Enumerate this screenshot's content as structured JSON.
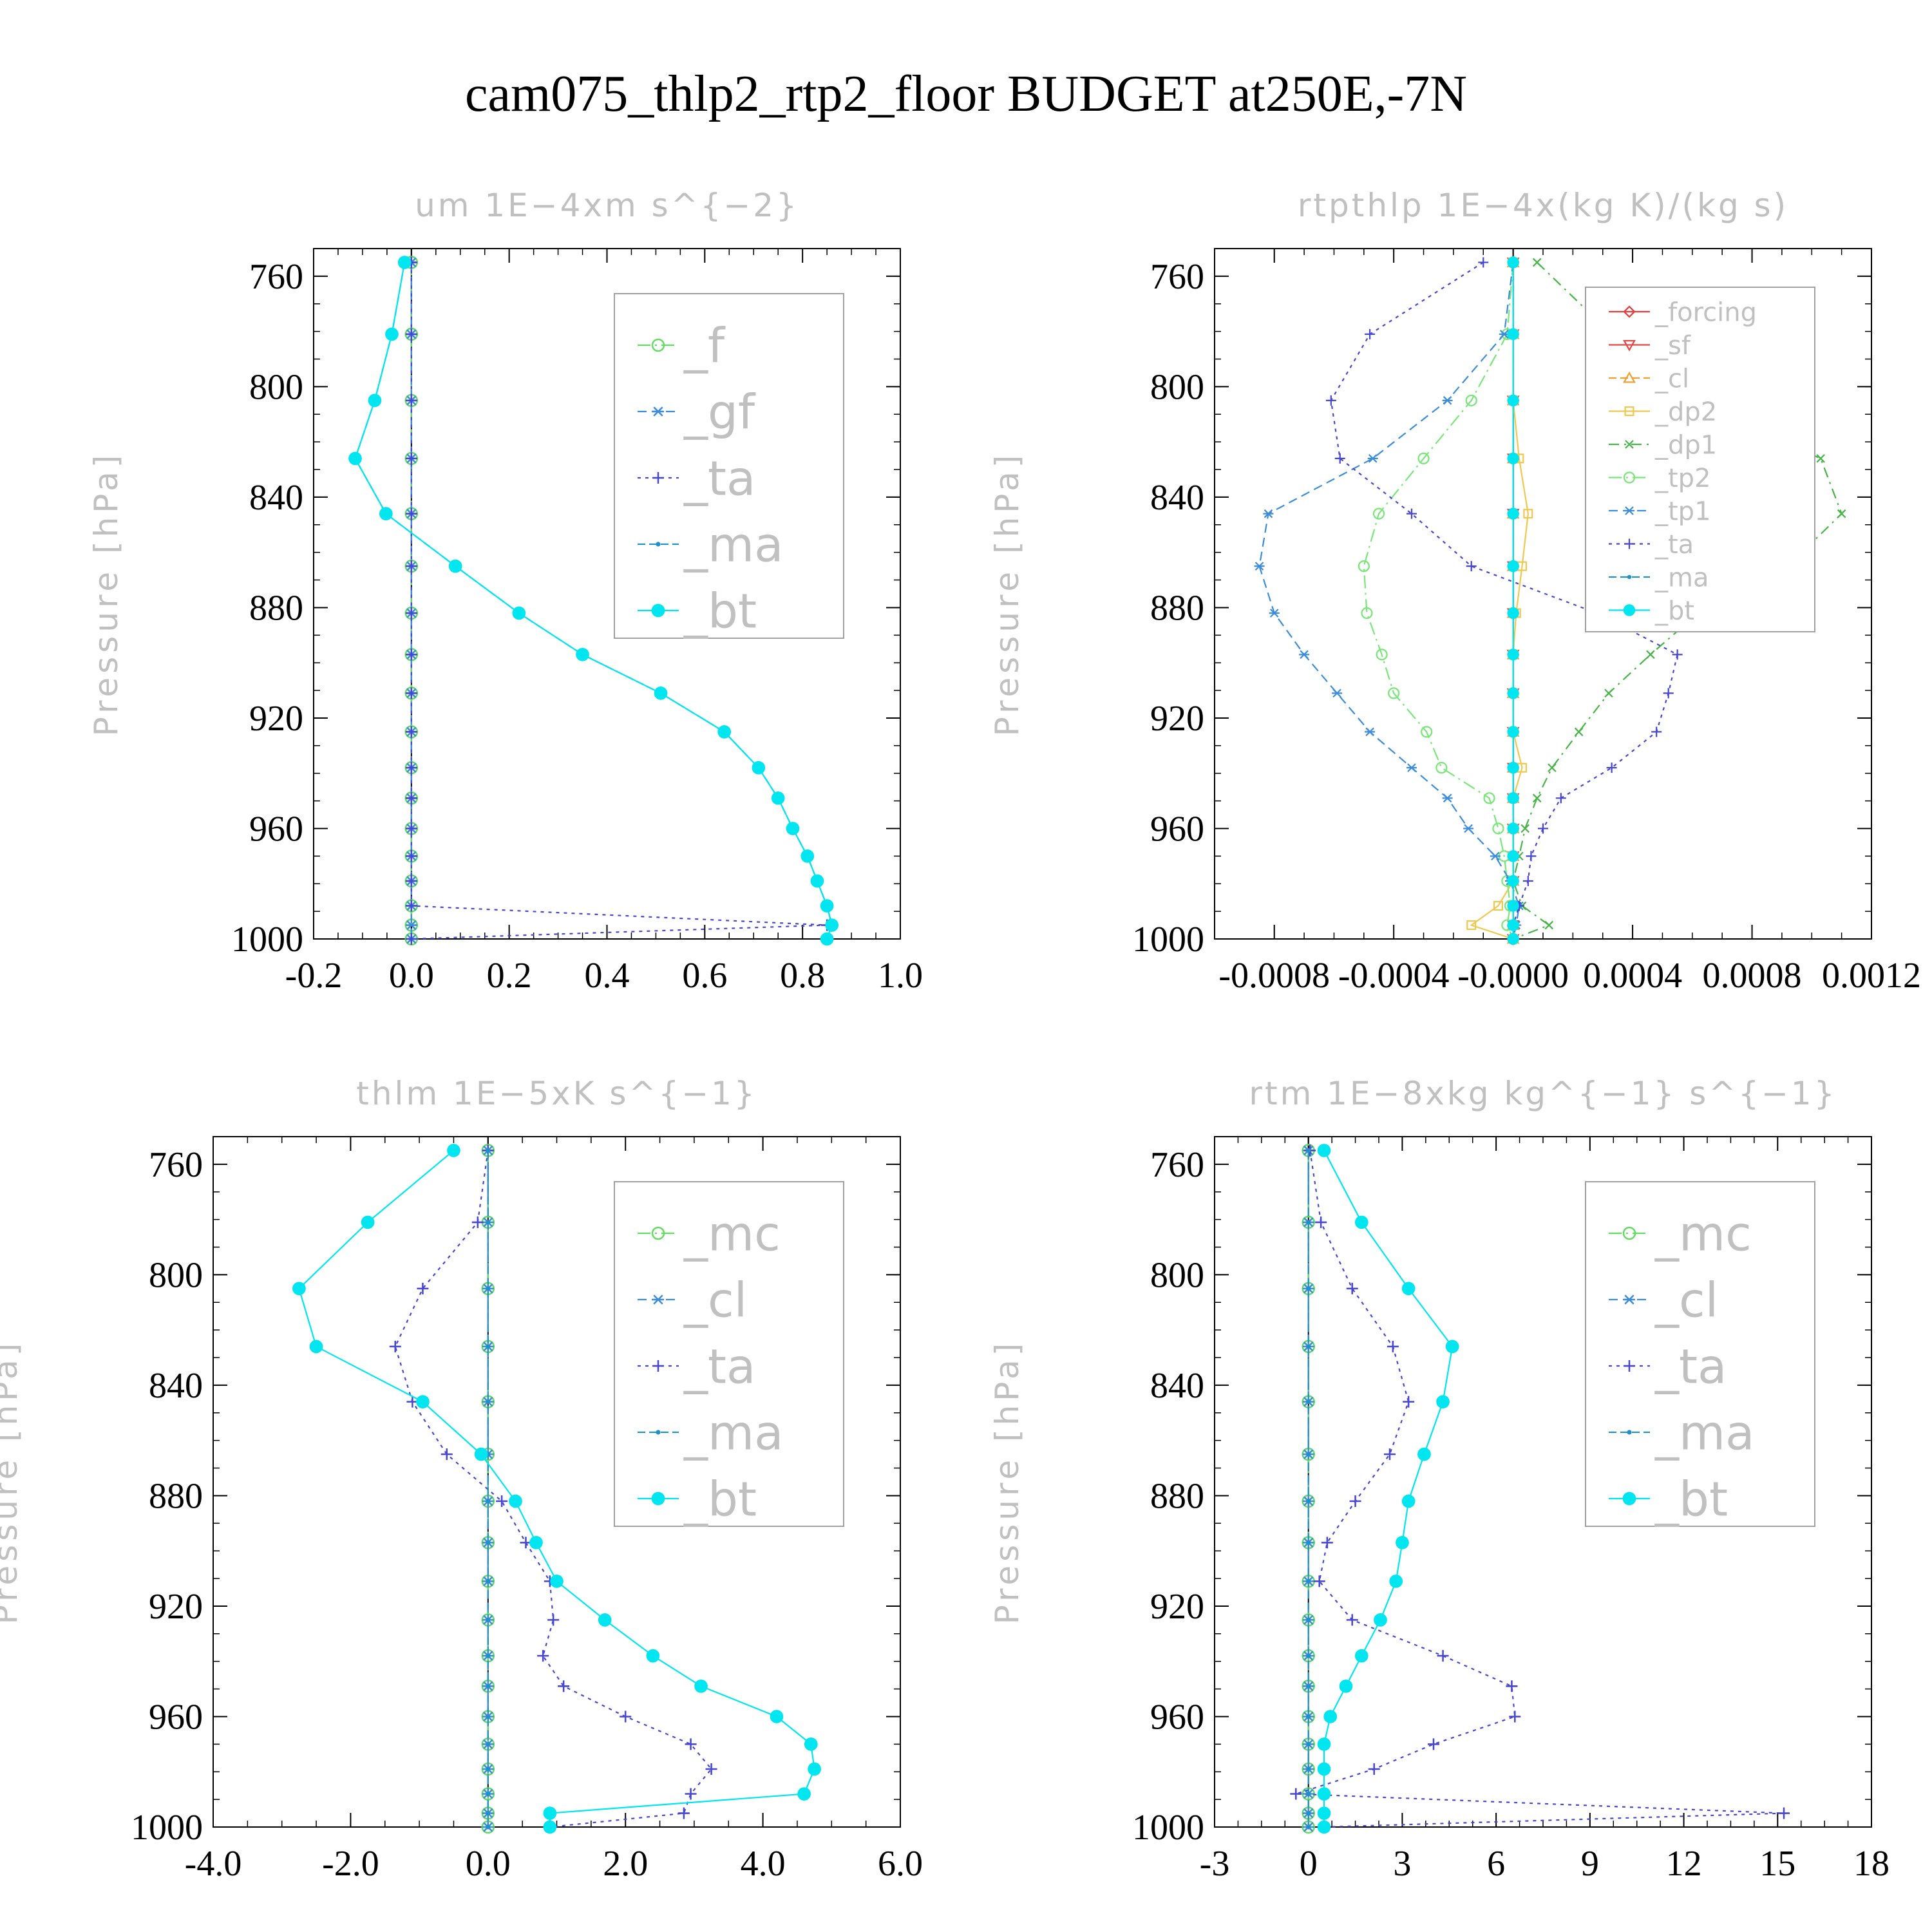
{
  "title": "cam075_thlp2_rtp2_floor  BUDGET at250E,-7N",
  "chart_data": [
    {
      "type": "line",
      "title": "um   1E−4xm s^{−2}",
      "ylabel": "Pressure [hPa]",
      "xlim": [
        -0.2,
        1.0
      ],
      "ylim": [
        1000,
        750
      ],
      "xticks": [
        -0.2,
        0.0,
        0.2,
        0.4,
        0.6,
        0.8,
        1.0
      ],
      "xtick_labels": [
        "-0.2",
        "0.0",
        "0.2",
        "0.4",
        "0.6",
        "0.8",
        "1.0"
      ],
      "yticks": [
        760,
        800,
        840,
        880,
        920,
        960,
        1000
      ],
      "ytick_labels": [
        "760",
        "800",
        "840",
        "880",
        "920",
        "960",
        "1000"
      ],
      "legend": "top-right",
      "legend_size": "large",
      "y": [
        755,
        781,
        805,
        826,
        846,
        865,
        882,
        897,
        911,
        925,
        938,
        949,
        960,
        970,
        979,
        988,
        995,
        1000
      ],
      "series": [
        {
          "name": "_f",
          "color": "#64dc64",
          "marker": "circle",
          "dash": "20,7,3,7",
          "values": [
            0,
            0,
            0,
            0,
            0,
            0,
            0,
            0,
            0,
            0,
            0,
            0,
            0,
            0,
            0,
            0,
            0,
            0
          ]
        },
        {
          "name": "_gf",
          "color": "#3c8cdc",
          "marker": "asterisk",
          "dash": "14,8",
          "values": [
            0,
            0,
            0,
            0,
            0,
            0,
            0,
            0,
            0,
            0,
            0,
            0,
            0,
            0,
            0,
            0,
            0,
            0
          ]
        },
        {
          "name": "_ta",
          "color": "#4646d2",
          "marker": "plus",
          "dash": "5,7",
          "values": [
            0,
            0,
            0,
            0,
            0,
            0,
            0,
            0,
            0,
            0,
            0,
            0,
            0,
            0,
            0,
            0,
            0.85,
            0
          ]
        },
        {
          "name": "_ma",
          "color": "#2090c8",
          "marker": "dot",
          "dash": "12,6",
          "values": [
            -0.014,
            -0.04,
            -0.075,
            -0.115,
            -0.052,
            0.09,
            0.22,
            0.35,
            0.51,
            0.64,
            0.71,
            0.75,
            0.78,
            0.81,
            0.83,
            0.85,
            0.86,
            0.85
          ]
        },
        {
          "name": "_bt",
          "color": "#00e6f0",
          "marker": "filled",
          "dash": "none",
          "values": [
            -0.014,
            -0.04,
            -0.075,
            -0.115,
            -0.052,
            0.09,
            0.22,
            0.35,
            0.51,
            0.64,
            0.71,
            0.75,
            0.78,
            0.81,
            0.83,
            0.85,
            0.86,
            0.85
          ]
        }
      ]
    },
    {
      "type": "line",
      "title": "rtpthlp   1E−4x(kg K)/(kg s)",
      "ylabel": "Pressure [hPa]",
      "xlim": [
        -0.001,
        0.0012
      ],
      "ylim": [
        1000,
        750
      ],
      "xticks": [
        -0.0008,
        -0.0004,
        0.0,
        0.0004,
        0.0008,
        0.0012
      ],
      "xtick_labels": [
        "-0.0008",
        "-0.0004",
        "-0.0000",
        "0.0004",
        "0.0008",
        "0.0012"
      ],
      "yticks": [
        760,
        800,
        840,
        880,
        920,
        960,
        1000
      ],
      "ytick_labels": [
        "760",
        "800",
        "840",
        "880",
        "920",
        "960",
        "1000"
      ],
      "legend": "top-right",
      "legend_size": "small",
      "y": [
        755,
        781,
        805,
        826,
        846,
        865,
        882,
        897,
        911,
        925,
        938,
        949,
        960,
        970,
        979,
        988,
        995,
        1000
      ],
      "series": [
        {
          "name": "_forcing",
          "color": "#e63c3c",
          "marker": "diamond",
          "dash": "none",
          "values": [
            0,
            0,
            0,
            0,
            0,
            0,
            0,
            0,
            0,
            0,
            0,
            0,
            0,
            0,
            0,
            0,
            0,
            0
          ]
        },
        {
          "name": "_sf",
          "color": "#e64646",
          "marker": "triangle-down",
          "dash": "none",
          "values": [
            0,
            0,
            0,
            0,
            0,
            0,
            0,
            0,
            0,
            0,
            0,
            0,
            0,
            0,
            0,
            0,
            0,
            0
          ]
        },
        {
          "name": "_cl",
          "color": "#f0a032",
          "marker": "triangle",
          "dash": "12,6",
          "values": [
            0,
            0,
            0,
            0,
            0,
            0,
            0,
            0,
            0,
            0,
            0,
            0,
            0,
            0,
            0,
            0,
            0,
            0
          ]
        },
        {
          "name": "_dp2",
          "color": "#f0c850",
          "marker": "square",
          "dash": "none",
          "values": [
            0,
            0,
            0,
            2e-05,
            5e-05,
            3e-05,
            1e-05,
            0,
            0,
            0,
            3e-05,
            0,
            0,
            0,
            0,
            -5e-05,
            -0.00014,
            0
          ]
        },
        {
          "name": "_dp1",
          "color": "#46b446",
          "marker": "x",
          "dash": "16,8,3,8",
          "values": [
            8e-05,
            0.00033,
            0.00056,
            0.00103,
            0.0011,
            0.00092,
            0.00062,
            0.00046,
            0.00032,
            0.00022,
            0.00013,
            8e-05,
            4e-05,
            2e-05,
            0,
            3e-05,
            0.00012,
            0
          ]
        },
        {
          "name": "_tp2",
          "color": "#78e678",
          "marker": "circle",
          "dash": "20,7,3,7",
          "values": [
            0,
            -2e-05,
            -0.00014,
            -0.0003,
            -0.00045,
            -0.0005,
            -0.00049,
            -0.00044,
            -0.0004,
            -0.00029,
            -0.00024,
            -8e-05,
            -5e-05,
            -3e-05,
            -2e-05,
            -1e-05,
            -2e-05,
            0
          ]
        },
        {
          "name": "_tp1",
          "color": "#3c8cdc",
          "marker": "asterisk",
          "dash": "14,8",
          "values": [
            0,
            -3e-05,
            -0.00022,
            -0.00047,
            -0.00082,
            -0.00085,
            -0.0008,
            -0.0007,
            -0.00059,
            -0.00048,
            -0.00034,
            -0.00022,
            -0.00015,
            -6e-05,
            -1e-05,
            2e-05,
            1e-05,
            0
          ]
        },
        {
          "name": "_ta",
          "color": "#4646d2",
          "marker": "plus",
          "dash": "5,7",
          "values": [
            -0.0001,
            -0.00048,
            -0.00061,
            -0.00058,
            -0.00034,
            -0.00014,
            0.00028,
            0.00055,
            0.00052,
            0.00048,
            0.00033,
            0.00016,
            0.0001,
            6e-05,
            5e-05,
            2e-05,
            0,
            0
          ]
        },
        {
          "name": "_ma",
          "color": "#2090c8",
          "marker": "dot",
          "dash": "12,6",
          "values": [
            0,
            0,
            0,
            0,
            0,
            0,
            0,
            0,
            0,
            0,
            0,
            0,
            0,
            0,
            0,
            0,
            0,
            0
          ]
        },
        {
          "name": "_bt",
          "color": "#00e6f0",
          "marker": "filled",
          "dash": "none",
          "values": [
            0,
            0,
            0,
            0,
            0,
            0,
            0,
            0,
            0,
            0,
            0,
            0,
            0,
            0,
            0,
            0,
            0,
            0
          ]
        }
      ]
    },
    {
      "type": "line",
      "title": "thlm   1E−5xK s^{−1}",
      "ylabel": "Pressure [hPa]",
      "xlim": [
        -4.0,
        6.0
      ],
      "ylim": [
        1000,
        750
      ],
      "xticks": [
        -4.0,
        -2.0,
        0.0,
        2.0,
        4.0,
        6.0
      ],
      "xtick_labels": [
        "-4.0",
        "-2.0",
        "0.0",
        "2.0",
        "4.0",
        "6.0"
      ],
      "yticks": [
        760,
        800,
        840,
        880,
        920,
        960,
        1000
      ],
      "ytick_labels": [
        "760",
        "800",
        "840",
        "880",
        "920",
        "960",
        "1000"
      ],
      "legend": "top-right",
      "legend_size": "large",
      "y": [
        755,
        781,
        805,
        826,
        846,
        865,
        882,
        897,
        911,
        925,
        938,
        949,
        960,
        970,
        979,
        988,
        995,
        1000
      ],
      "series": [
        {
          "name": "_mc",
          "color": "#64dc64",
          "marker": "circle",
          "dash": "20,7,3,7",
          "values": [
            0,
            0,
            0,
            0,
            0,
            0,
            0,
            0,
            0,
            0,
            0,
            0,
            0,
            0,
            0,
            0,
            0,
            0
          ]
        },
        {
          "name": "_cl",
          "color": "#3c8cdc",
          "marker": "asterisk",
          "dash": "14,8",
          "values": [
            0,
            0,
            0,
            0,
            0,
            0,
            0,
            0,
            0,
            0,
            0,
            0,
            0,
            0,
            0,
            0,
            0,
            0
          ]
        },
        {
          "name": "_ta",
          "color": "#4646d2",
          "marker": "plus",
          "dash": "5,7",
          "values": [
            0.0,
            -0.15,
            -0.95,
            -1.35,
            -1.1,
            -0.6,
            0.2,
            0.55,
            0.9,
            0.95,
            0.8,
            1.1,
            2.0,
            2.95,
            3.25,
            2.95,
            2.85,
            0.9
          ]
        },
        {
          "name": "_ma",
          "color": "#2090c8",
          "marker": "dot",
          "dash": "12,6",
          "values": [
            0,
            0,
            0,
            0,
            0,
            0,
            0,
            0,
            0,
            0,
            0,
            0,
            0,
            0,
            0,
            0,
            0,
            0
          ]
        },
        {
          "name": "_bt",
          "color": "#00e6f0",
          "marker": "filled",
          "dash": "none",
          "values": [
            -0.5,
            -1.75,
            -2.75,
            -2.5,
            -0.95,
            -0.1,
            0.4,
            0.7,
            1.0,
            1.7,
            2.4,
            3.1,
            4.2,
            4.7,
            4.75,
            4.6,
            0.9,
            0.9
          ]
        }
      ]
    },
    {
      "type": "line",
      "title": "rtm   1E−8xkg kg^{−1} s^{−1}",
      "ylabel": "Pressure [hPa]",
      "xlim": [
        -3,
        18
      ],
      "ylim": [
        1000,
        750
      ],
      "xticks": [
        -3,
        0,
        3,
        6,
        9,
        12,
        15,
        18
      ],
      "xtick_labels": [
        "-3",
        "0",
        "3",
        "6",
        "9",
        "12",
        "15",
        "18"
      ],
      "yticks": [
        760,
        800,
        840,
        880,
        920,
        960,
        1000
      ],
      "ytick_labels": [
        "760",
        "800",
        "840",
        "880",
        "920",
        "960",
        "1000"
      ],
      "legend": "top-right",
      "legend_size": "large",
      "y": [
        755,
        781,
        805,
        826,
        846,
        865,
        882,
        897,
        911,
        925,
        938,
        949,
        960,
        970,
        979,
        988,
        995,
        1000
      ],
      "series": [
        {
          "name": "_mc",
          "color": "#64dc64",
          "marker": "circle",
          "dash": "20,7,3,7",
          "values": [
            0,
            0,
            0,
            0,
            0,
            0,
            0,
            0,
            0,
            0,
            0,
            0,
            0,
            0,
            0,
            0,
            0,
            0
          ]
        },
        {
          "name": "_cl",
          "color": "#3c8cdc",
          "marker": "asterisk",
          "dash": "14,8",
          "values": [
            0,
            0,
            0,
            0,
            0,
            0,
            0,
            0,
            0,
            0,
            0,
            0,
            0,
            0,
            0,
            0,
            0,
            0
          ]
        },
        {
          "name": "_ta",
          "color": "#4646d2",
          "marker": "plus",
          "dash": "5,7",
          "values": [
            0.05,
            0.4,
            1.4,
            2.7,
            3.2,
            2.6,
            1.5,
            0.6,
            0.35,
            1.4,
            4.3,
            6.5,
            6.6,
            4.0,
            2.1,
            -0.4,
            15.2,
            0.5
          ]
        },
        {
          "name": "_ma",
          "color": "#2090c8",
          "marker": "dot",
          "dash": "12,6",
          "values": [
            0,
            0,
            0,
            0,
            0,
            0,
            0,
            0,
            0,
            0,
            0,
            0,
            0,
            0,
            0,
            0,
            0,
            0
          ]
        },
        {
          "name": "_bt",
          "color": "#00e6f0",
          "marker": "filled",
          "dash": "none",
          "values": [
            0.5,
            1.7,
            3.2,
            4.6,
            4.3,
            3.7,
            3.2,
            3.0,
            2.8,
            2.3,
            1.7,
            1.2,
            0.7,
            0.5,
            0.5,
            0.5,
            0.5,
            0.5
          ]
        }
      ]
    }
  ]
}
